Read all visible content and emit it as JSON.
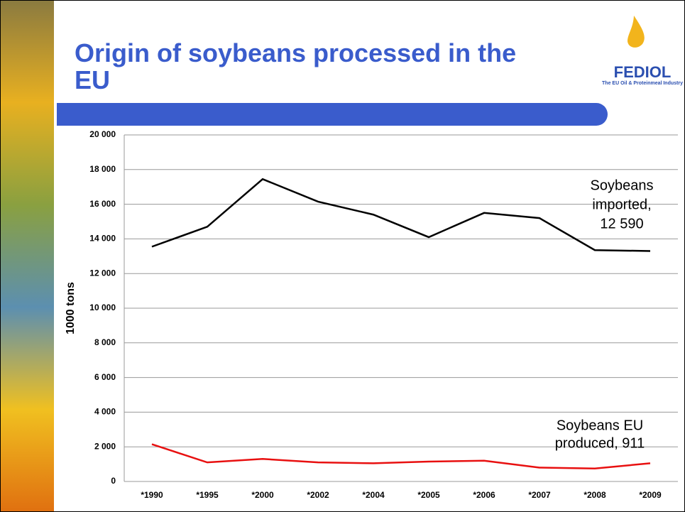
{
  "logo": {
    "name": "FEDIOL",
    "tagline": "The EU Oil & Proteinmeal Industry"
  },
  "chart_data": {
    "type": "line",
    "title": "Origin of soybeans processed in the EU",
    "y_label": "1000 tons",
    "categories": [
      "*1990",
      "*1995",
      "*2000",
      "*2002",
      "*2004",
      "*2005",
      "*2006",
      "*2007",
      "*2008",
      "*2009"
    ],
    "series": [
      {
        "color": "#000000",
        "values": [
          13550,
          14700,
          17450,
          16150,
          15400,
          14100,
          15500,
          15200,
          13350,
          13300
        ]
      },
      {
        "color": "#e81010",
        "values": [
          2150,
          1100,
          1300,
          1100,
          1050,
          1150,
          1200,
          800,
          750,
          1050
        ]
      }
    ],
    "annotations": [
      {
        "lines": [
          "Soybeans",
          "imported,",
          "12 590"
        ]
      },
      {
        "lines": [
          "Soybeans EU",
          "produced,  911"
        ]
      }
    ],
    "ylim": [
      0,
      20000
    ],
    "yticks": [
      0,
      {
        "value": 2000,
        "label": "2 000"
      },
      {
        "value": 4000,
        "label": "4 000"
      },
      {
        "value": 6000,
        "label": "6 000"
      },
      {
        "value": 8000,
        "label": "8 000"
      },
      {
        "value": 10000,
        "label": "10 000"
      },
      {
        "value": 12000,
        "label": "12 000"
      },
      {
        "value": 14000,
        "label": "14 000"
      },
      {
        "value": 16000,
        "label": "16 000"
      },
      {
        "value": 18000,
        "label": "18 000"
      },
      {
        "value": 20000,
        "label": "20 000"
      }
    ],
    "grid": true
  }
}
